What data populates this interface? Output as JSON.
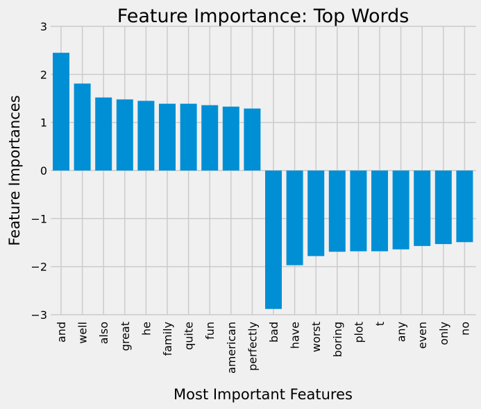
{
  "chart_data": {
    "type": "bar",
    "title": "Feature Importance: Top Words",
    "xlabel": "Most Important Features",
    "ylabel": "Feature Importances",
    "ylim": [
      -3,
      3
    ],
    "yticks": [
      "−3",
      "−2",
      "−1",
      "0",
      "1",
      "2",
      "3"
    ],
    "grid": true,
    "bar_color": "#008fd5",
    "background_color": "#f0f0f0",
    "grid_color": "#cbcbcb",
    "categories": [
      "and",
      "well",
      "also",
      "great",
      "he",
      "family",
      "quite",
      "fun",
      "american",
      "perfectly",
      "bad",
      "have",
      "worst",
      "boring",
      "plot",
      "t",
      "any",
      "even",
      "only",
      "no"
    ],
    "values": [
      2.45,
      1.81,
      1.52,
      1.48,
      1.45,
      1.39,
      1.39,
      1.36,
      1.33,
      1.29,
      -2.88,
      -1.97,
      -1.78,
      -1.69,
      -1.68,
      -1.68,
      -1.64,
      -1.57,
      -1.53,
      -1.49
    ]
  }
}
